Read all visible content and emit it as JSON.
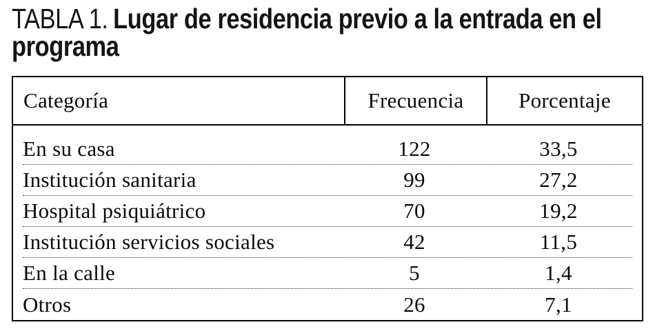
{
  "title": {
    "prefix": "TABLA 1.",
    "line1": "Lugar de residencia previo a la entrada en el",
    "line2": "programa"
  },
  "table": {
    "columns": [
      "Categoría",
      "Frecuencia",
      "Porcentaje"
    ],
    "rows": [
      {
        "category": "En su casa",
        "frequency": "122",
        "percentage": "33,5"
      },
      {
        "category": "Institución sanitaria",
        "frequency": "99",
        "percentage": "27,2"
      },
      {
        "category": "Hospital psiquiátrico",
        "frequency": "70",
        "percentage": "19,2"
      },
      {
        "category": "Institución servicios sociales",
        "frequency": "42",
        "percentage": "11,5"
      },
      {
        "category": "En la calle",
        "frequency": "5",
        "percentage": "1,4"
      },
      {
        "category": "Otros",
        "frequency": "26",
        "percentage": "7,1"
      }
    ]
  },
  "chart_data": {
    "type": "table",
    "title": "TABLA 1. Lugar de residencia previo a la entrada en el programa",
    "categories": [
      "En su casa",
      "Institución sanitaria",
      "Hospital psiquiátrico",
      "Institución servicios sociales",
      "En la calle",
      "Otros"
    ],
    "series": [
      {
        "name": "Frecuencia",
        "values": [
          122,
          99,
          70,
          42,
          5,
          26
        ]
      },
      {
        "name": "Porcentaje",
        "values": [
          33.5,
          27.2,
          19.2,
          11.5,
          1.4,
          7.1
        ]
      }
    ]
  },
  "colors": {
    "text": "#0a0a0a",
    "border": "#000000",
    "background": "#ffffff"
  }
}
